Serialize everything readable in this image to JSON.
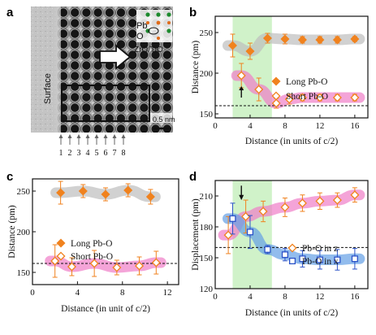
{
  "panels": {
    "a": {
      "label": "a",
      "surface_label": "Surface",
      "pb_label": "Pb",
      "o_label": "O",
      "zro_label": "ZrO/TiO",
      "scale_label": "0.5 nm",
      "column_numbers": [
        "1",
        "2",
        "3",
        "4",
        "5",
        "6",
        "7",
        "8"
      ]
    },
    "b": {
      "label": "b"
    },
    "c": {
      "label": "c"
    },
    "d": {
      "label": "d"
    }
  },
  "chart_data": [
    {
      "panel": "b",
      "type": "scatter",
      "xlabel": "Distance (in units of c/2)",
      "ylabel": "Distance (pm)",
      "xlim": [
        0,
        17.5
      ],
      "ylim": [
        145,
        270
      ],
      "xticks": [
        0,
        4,
        8,
        12,
        16
      ],
      "yticks": [
        150,
        200,
        250
      ],
      "shaded_x_range": [
        2,
        6.5
      ],
      "reference_line_y": 160,
      "arrow_x": 3,
      "series": [
        {
          "name": "Long Pb-O",
          "marker": "filled-diamond",
          "color": "#f0821e",
          "band_color": "#bdbdbd",
          "x": [
            2,
            4,
            6,
            8,
            10,
            12,
            14,
            16
          ],
          "y": [
            234,
            227,
            243,
            242,
            241,
            241,
            241,
            242
          ],
          "err": [
            14,
            10,
            6,
            6,
            4,
            4,
            4,
            3
          ]
        },
        {
          "name": "Short Pb-O",
          "marker": "open-diamond",
          "color": "#f0821e",
          "band_color": "#f07dc8",
          "x": [
            3,
            5,
            7,
            8.5,
            10,
            12,
            14,
            16
          ],
          "y": [
            197,
            180,
            163,
            168,
            170,
            170,
            170,
            170
          ],
          "err": [
            15,
            14,
            6,
            6,
            4,
            4,
            4,
            4
          ]
        }
      ]
    },
    {
      "panel": "c",
      "type": "scatter",
      "xlabel": "Distance (in unit of c/2)",
      "ylabel": "Distance (pm)",
      "xlim": [
        0,
        13
      ],
      "ylim": [
        135,
        265
      ],
      "xticks": [
        0,
        4,
        8,
        12
      ],
      "yticks": [
        150,
        200,
        250
      ],
      "reference_line_y": 161,
      "series": [
        {
          "name": "Long Pb-O",
          "marker": "filled-diamond",
          "color": "#f0821e",
          "band_color": "#bdbdbd",
          "x": [
            2.5,
            4.5,
            6.5,
            8.5,
            10.5
          ],
          "y": [
            248,
            250,
            246,
            251,
            243
          ],
          "err": [
            14,
            8,
            8,
            8,
            9
          ]
        },
        {
          "name": "Short Pb-O",
          "marker": "open-diamond",
          "color": "#f0821e",
          "band_color": "#f07dc8",
          "x": [
            2,
            3.5,
            5.5,
            7.5,
            9.5,
            11
          ],
          "y": [
            164,
            157,
            161,
            156,
            158,
            162
          ],
          "err": [
            20,
            11,
            16,
            9,
            11,
            14
          ]
        }
      ]
    },
    {
      "panel": "d",
      "type": "scatter",
      "xlabel": "Distance (in units of c/2)",
      "ylabel": "Displacement (pm)",
      "xlim": [
        0,
        17.5
      ],
      "ylim": [
        120,
        225
      ],
      "xticks": [
        0,
        4,
        8,
        12,
        16
      ],
      "yticks": [
        120,
        150,
        180,
        210
      ],
      "shaded_x_range": [
        2,
        6.5
      ],
      "reference_line_y": 160,
      "arrow_x": 3,
      "series": [
        {
          "name": "Pb-O in z",
          "marker": "open-diamond",
          "color": "#f0821e",
          "band_color": "#f07dc8",
          "x": [
            1.5,
            3.5,
            5.5,
            8,
            10,
            12,
            14,
            16
          ],
          "y": [
            172,
            190,
            195,
            199,
            203,
            205,
            206,
            211
          ],
          "err": [
            18,
            16,
            10,
            9,
            8,
            8,
            7,
            7
          ]
        },
        {
          "name": "Pb-O in x",
          "marker": "open-square",
          "color": "#2a52c8",
          "band_color": "#64a0e6",
          "x": [
            2,
            4,
            6,
            8,
            10,
            12,
            14,
            16
          ],
          "y": [
            188,
            175,
            158,
            153,
            149,
            148,
            148,
            149
          ],
          "err": [
            15,
            16,
            4,
            6,
            8,
            9,
            10,
            10
          ]
        }
      ]
    }
  ]
}
